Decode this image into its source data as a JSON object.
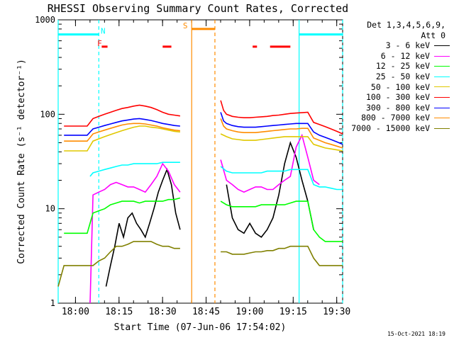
{
  "chart_data": {
    "type": "line",
    "title": "RHESSI Observing Summary Count Rates, Corrected",
    "xlabel": "Start Time (07-Jun-06 17:54:02)",
    "ylabel": "Corrected Count Rate (s⁻¹ detector⁻¹)",
    "yscale": "log",
    "ylim": [
      1,
      1000
    ],
    "xlim_minutes_after_1754": [
      0,
      98
    ],
    "x_ticks": [
      "18:00",
      "18:15",
      "18:30",
      "18:45",
      "19:00",
      "19:15",
      "19:30"
    ],
    "y_ticks": [
      "1",
      "10",
      "100",
      "1000"
    ],
    "legend": {
      "header_line1": "Det 1,3,4,5,6,9,",
      "header_line2": "Att 0",
      "placement": "right"
    },
    "series": [
      {
        "name": "3 - 6 keV",
        "color": "#000000",
        "segments": [
          {
            "t": [
              16.5,
              18,
              19.5,
              21,
              22.5,
              24,
              25.5,
              27,
              28.5,
              30,
              31.5,
              33,
              34.5,
              36,
              37.5,
              39,
              40.5,
              42
            ],
            "v": [
              1.5,
              2.5,
              4,
              7,
              5,
              8,
              9,
              7,
              6,
              5,
              7,
              10,
              15,
              20,
              26,
              18,
              9,
              6
            ]
          },
          {
            "t": [
              58,
              60,
              62,
              64,
              66,
              68,
              70,
              72,
              74,
              76,
              78,
              80,
              82,
              84,
              86,
              88
            ],
            "v": [
              18,
              8,
              6,
              5.5,
              7,
              5.5,
              5,
              6,
              8,
              14,
              30,
              50,
              35,
              20,
              12,
              6
            ]
          }
        ]
      },
      {
        "name": "6 - 12 keV",
        "color": "#ff00ff",
        "segments": [
          {
            "t": [
              11,
              12,
              14,
              16,
              18,
              20,
              22,
              24,
              26,
              28,
              30,
              32,
              34,
              36,
              38,
              40,
              42
            ],
            "v": [
              1,
              14,
              15,
              16,
              18,
              19,
              18,
              17,
              17,
              16,
              15,
              18,
              22,
              30,
              25,
              18,
              15
            ]
          },
          {
            "t": [
              56,
              58,
              60,
              62,
              64,
              66,
              68,
              70,
              72,
              74,
              76,
              78,
              80,
              82,
              84,
              86,
              88,
              90
            ],
            "v": [
              33,
              20,
              18,
              16,
              15,
              16,
              17,
              17,
              16,
              16,
              18,
              20,
              22,
              45,
              60,
              35,
              20,
              18
            ]
          }
        ]
      },
      {
        "name": "12 - 25 keV",
        "color": "#00ff00",
        "segments": [
          {
            "t": [
              2,
              4,
              6,
              8,
              10,
              12,
              14,
              16,
              18,
              20,
              22,
              24,
              26,
              28,
              30,
              32,
              34,
              36,
              38,
              40,
              42
            ],
            "v": [
              5.5,
              5.5,
              5.5,
              5.5,
              5.5,
              9,
              9.5,
              10,
              11,
              11.5,
              12,
              12,
              12,
              11.5,
              12,
              12,
              12,
              12,
              12.5,
              12.5,
              13
            ]
          },
          {
            "t": [
              56,
              58,
              60,
              62,
              64,
              66,
              68,
              70,
              72,
              74,
              76,
              78,
              80,
              82,
              84,
              86,
              88,
              90,
              92,
              94,
              96,
              98
            ],
            "v": [
              12,
              11,
              10.5,
              10.5,
              10.5,
              10.5,
              10.5,
              11,
              11,
              11,
              11,
              11,
              11.5,
              12,
              12,
              12,
              6,
              5,
              4.5,
              4.5,
              4.5,
              4.5
            ]
          }
        ]
      },
      {
        "name": "25 - 50 keV",
        "color": "#00ffff",
        "segments": [
          {
            "t": [
              11,
              12,
              14,
              16,
              18,
              20,
              22,
              24,
              26,
              28,
              30,
              32,
              34,
              36,
              38,
              40,
              42
            ],
            "v": [
              22,
              24,
              25,
              26,
              27,
              28,
              29,
              29,
              30,
              30,
              30,
              30,
              30,
              31,
              31,
              31,
              31
            ]
          },
          {
            "t": [
              56,
              58,
              60,
              62,
              64,
              66,
              68,
              70,
              72,
              74,
              76,
              78,
              80,
              82,
              84,
              86,
              88,
              90,
              92,
              94,
              96,
              98
            ],
            "v": [
              28,
              25,
              24,
              24,
              24,
              24,
              24,
              24,
              25,
              25,
              25,
              25,
              26,
              26,
              26,
              26,
              18,
              17,
              17,
              16.5,
              16,
              16
            ]
          }
        ]
      },
      {
        "name": "50 - 100 keV",
        "color": "#e0c800",
        "segments": [
          {
            "t": [
              2,
              4,
              6,
              8,
              10,
              12,
              14,
              16,
              18,
              20,
              22,
              24,
              26,
              28,
              30,
              32,
              34,
              36,
              38,
              40,
              42
            ],
            "v": [
              41,
              41,
              41,
              41,
              41,
              52,
              55,
              58,
              61,
              64,
              67,
              70,
              73,
              75,
              75,
              73,
              72,
              70,
              68,
              66,
              65
            ]
          },
          {
            "t": [
              56,
              58,
              60,
              62,
              64,
              66,
              68,
              70,
              72,
              74,
              76,
              78,
              80,
              82,
              84,
              86,
              88,
              90,
              92,
              94,
              96,
              98
            ],
            "v": [
              62,
              58,
              55,
              54,
              53,
              53,
              53,
              54,
              55,
              56,
              57,
              58,
              58,
              58,
              58,
              58,
              48,
              46,
              44,
              43,
              42,
              41
            ]
          }
        ]
      },
      {
        "name": "100 - 300 keV",
        "color": "#ff0000",
        "segments": [
          {
            "t": [
              2,
              4,
              6,
              8,
              10,
              12,
              14,
              16,
              18,
              20,
              22,
              24,
              26,
              28,
              30,
              32,
              34,
              36,
              38,
              40,
              42
            ],
            "v": [
              75,
              75,
              75,
              75,
              75,
              90,
              95,
              100,
              105,
              110,
              115,
              118,
              122,
              125,
              122,
              118,
              112,
              105,
              100,
              98,
              96
            ]
          },
          {
            "t": [
              56,
              57,
              58,
              60,
              62,
              64,
              66,
              68,
              70,
              72,
              74,
              76,
              78,
              80,
              82,
              84,
              86,
              88,
              90,
              92,
              94,
              96,
              98
            ],
            "v": [
              140,
              110,
              100,
              95,
              93,
              92,
              92,
              93,
              94,
              95,
              97,
              98,
              100,
              102,
              103,
              104,
              105,
              82,
              78,
              74,
              70,
              66,
              62
            ]
          }
        ]
      },
      {
        "name": "300 - 800 keV",
        "color": "#0000ff",
        "segments": [
          {
            "t": [
              2,
              4,
              6,
              8,
              10,
              12,
              14,
              16,
              18,
              20,
              22,
              24,
              26,
              28,
              30,
              32,
              34,
              36,
              38,
              40,
              42
            ],
            "v": [
              60,
              60,
              60,
              60,
              60,
              70,
              73,
              76,
              79,
              82,
              85,
              87,
              89,
              90,
              88,
              86,
              83,
              80,
              78,
              76,
              75
            ]
          },
          {
            "t": [
              56,
              57,
              58,
              60,
              62,
              64,
              66,
              68,
              70,
              72,
              74,
              76,
              78,
              80,
              82,
              84,
              86,
              88,
              90,
              92,
              94,
              96,
              98
            ],
            "v": [
              105,
              85,
              80,
              76,
              74,
              73,
              73,
              73,
              74,
              75,
              76,
              77,
              78,
              79,
              80,
              80,
              80,
              65,
              60,
              57,
              54,
              51,
              48
            ]
          }
        ]
      },
      {
        "name": "800 - 7000 keV",
        "color": "#ff8c00",
        "segments": [
          {
            "t": [
              2,
              4,
              6,
              8,
              10,
              12,
              14,
              16,
              18,
              20,
              22,
              24,
              26,
              28,
              30,
              32,
              34,
              36,
              38,
              40,
              42
            ],
            "v": [
              52,
              52,
              52,
              52,
              52,
              62,
              65,
              68,
              71,
              74,
              77,
              79,
              80,
              80,
              79,
              77,
              75,
              72,
              70,
              68,
              67
            ]
          },
          {
            "t": [
              56,
              57,
              58,
              60,
              62,
              64,
              66,
              68,
              70,
              72,
              74,
              76,
              78,
              80,
              82,
              84,
              86,
              88,
              90,
              92,
              94,
              96,
              98
            ],
            "v": [
              90,
              75,
              70,
              67,
              65,
              64,
              64,
              64,
              65,
              66,
              67,
              68,
              69,
              70,
              70,
              71,
              71,
              56,
              53,
              50,
              48,
              46,
              44
            ]
          }
        ]
      },
      {
        "name": "7000 - 15000 keV",
        "color": "#808000",
        "segments": [
          {
            "t": [
              0,
              2,
              4,
              6,
              8,
              10,
              12,
              14,
              16,
              18,
              20,
              22,
              24,
              26,
              28,
              30,
              32,
              34,
              36,
              38,
              40,
              42
            ],
            "v": [
              1.5,
              2.5,
              2.5,
              2.5,
              2.5,
              2.5,
              2.5,
              2.8,
              3,
              3.5,
              4,
              4,
              4.2,
              4.5,
              4.5,
              4.5,
              4.5,
              4.2,
              4,
              4,
              3.8,
              3.8
            ]
          },
          {
            "t": [
              56,
              58,
              60,
              62,
              64,
              66,
              68,
              70,
              72,
              74,
              76,
              78,
              80,
              82,
              84,
              86,
              88,
              90,
              92,
              94,
              96,
              98
            ],
            "v": [
              3.5,
              3.5,
              3.3,
              3.3,
              3.3,
              3.4,
              3.5,
              3.5,
              3.6,
              3.6,
              3.8,
              3.8,
              4,
              4,
              4,
              4,
              3,
              2.5,
              2.5,
              2.5,
              2.5,
              2.5
            ]
          }
        ]
      }
    ],
    "annotations": [
      {
        "type": "flag_bar",
        "label": "N",
        "color": "#00ffff",
        "t_range": [
          0,
          14
        ],
        "level": 700
      },
      {
        "type": "flag_bar",
        "label": "",
        "color": "#00ffff",
        "t_range": [
          83,
          98
        ],
        "level": 700
      },
      {
        "type": "flag_bar",
        "label": "S",
        "color": "#ff8c00",
        "t_range": [
          46,
          54
        ],
        "level": 800
      },
      {
        "type": "flag_bar",
        "label": "F",
        "color": "#ff0000",
        "t_range": [
          15,
          17
        ],
        "level": 520
      },
      {
        "type": "flag_bar",
        "label": "",
        "color": "#ff0000",
        "t_range": [
          36,
          39
        ],
        "level": 520
      },
      {
        "type": "flag_bar",
        "label": "",
        "color": "#ff0000",
        "t_range": [
          67,
          68.5
        ],
        "level": 520
      },
      {
        "type": "flag_bar",
        "label": "",
        "color": "#ff0000",
        "t_range": [
          73,
          80
        ],
        "level": 520
      },
      {
        "type": "vline",
        "color": "#00ffff",
        "t": 0,
        "style": "solid"
      },
      {
        "type": "vline",
        "color": "#00ffff",
        "t": 14,
        "style": "dashed"
      },
      {
        "type": "vline",
        "color": "#ff8c00",
        "t": 46,
        "style": "solid"
      },
      {
        "type": "vline",
        "color": "#ff8c00",
        "t": 54,
        "style": "dashed"
      },
      {
        "type": "vline",
        "color": "#00ffff",
        "t": 83,
        "style": "solid"
      },
      {
        "type": "vline",
        "color": "#00ffff",
        "t": 98,
        "style": "dashed"
      }
    ],
    "grid": false
  },
  "footer": {
    "timestamp": "15-Oct-2021 18:19"
  }
}
